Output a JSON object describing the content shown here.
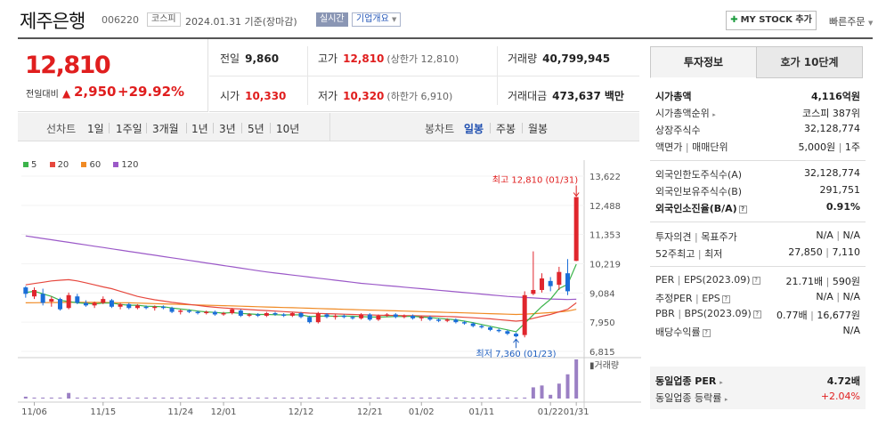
{
  "header": {
    "name": "제주은행",
    "code": "006220",
    "market": "코스피",
    "date": "2024.01.31 기준(장마감)",
    "realtime": "실시간",
    "overview": "기업개요",
    "mystock": "MY STOCK 추가",
    "quick_order": "빠른주문"
  },
  "price": {
    "current": "12,810",
    "prev_label": "전일대비",
    "change": "2,950",
    "change_pct": "+29.92%"
  },
  "quote": {
    "prev_close_label": "전일",
    "prev_close": "9,860",
    "high_label": "고가",
    "high": "12,810",
    "high_sub": "(상한가 12,810)",
    "volume_label": "거래량",
    "volume": "40,799,945",
    "open_label": "시가",
    "open": "10,330",
    "low_label": "저가",
    "low": "10,320",
    "low_sub": "(하한가 6,910)",
    "amount_label": "거래대금",
    "amount": "473,637",
    "amount_unit": "백만"
  },
  "tabs": {
    "line_label": "선차트",
    "line_periods": [
      "1일",
      "1주일",
      "3개월",
      "1년",
      "3년",
      "5년",
      "10년"
    ],
    "candle_label": "봉차트",
    "candle_periods": [
      "일봉",
      "주봉",
      "월봉"
    ],
    "active_candle": "일봉"
  },
  "legend": [
    {
      "label": "5",
      "color": "#3cb44b"
    },
    {
      "label": "20",
      "color": "#e6483e"
    },
    {
      "label": "60",
      "color": "#f08a24"
    },
    {
      "label": "120",
      "color": "#9b59c8"
    }
  ],
  "chart_data": {
    "type": "candlestick",
    "y_ticks": [
      "13,622",
      "12,488",
      "11,353",
      "10,219",
      "9,084",
      "7,950",
      "6,815"
    ],
    "ylim": [
      6815,
      13622
    ],
    "x_ticks": [
      "11/06",
      "11/15",
      "11/24",
      "12/01",
      "12/12",
      "12/21",
      "01/02",
      "01/11",
      "01/22",
      "01/31"
    ],
    "max_annotation": "최고 12,810 (01/31)",
    "min_annotation": "최저 7,360 (01/23)",
    "volume_label": "거래량",
    "candles": [
      [
        9300,
        9350,
        8900,
        9050
      ],
      [
        8950,
        9300,
        8850,
        9200
      ],
      [
        9050,
        9250,
        8600,
        8700
      ],
      [
        8750,
        8950,
        8550,
        8850
      ],
      [
        8850,
        8900,
        8400,
        8450
      ],
      [
        8500,
        9100,
        8450,
        9000
      ],
      [
        8950,
        9050,
        8650,
        8700
      ],
      [
        8700,
        8800,
        8550,
        8600
      ],
      [
        8600,
        8750,
        8500,
        8700
      ],
      [
        8700,
        8950,
        8650,
        8850
      ],
      [
        8800,
        8850,
        8500,
        8550
      ],
      [
        8550,
        8700,
        8450,
        8650
      ],
      [
        8650,
        8700,
        8450,
        8500
      ],
      [
        8500,
        8650,
        8450,
        8600
      ],
      [
        8550,
        8600,
        8450,
        8500
      ],
      [
        8500,
        8600,
        8400,
        8550
      ],
      [
        8550,
        8600,
        8450,
        8500
      ],
      [
        8500,
        8550,
        8300,
        8350
      ],
      [
        8350,
        8450,
        8250,
        8400
      ],
      [
        8400,
        8450,
        8300,
        8350
      ],
      [
        8350,
        8400,
        8250,
        8300
      ],
      [
        8300,
        8400,
        8250,
        8350
      ],
      [
        8350,
        8400,
        8200,
        8250
      ],
      [
        8250,
        8350,
        8200,
        8300
      ],
      [
        8300,
        8500,
        8250,
        8450
      ],
      [
        8400,
        8450,
        8150,
        8200
      ],
      [
        8200,
        8300,
        8150,
        8250
      ],
      [
        8250,
        8300,
        8150,
        8200
      ],
      [
        8200,
        8350,
        8150,
        8300
      ],
      [
        8300,
        8350,
        8200,
        8250
      ],
      [
        8250,
        8300,
        8150,
        8200
      ],
      [
        8200,
        8350,
        8150,
        8300
      ],
      [
        8300,
        8350,
        8100,
        8150
      ],
      [
        8150,
        8200,
        7900,
        7950
      ],
      [
        7950,
        8350,
        7900,
        8300
      ],
      [
        8250,
        8300,
        8100,
        8150
      ],
      [
        8150,
        8250,
        8050,
        8200
      ],
      [
        8200,
        8250,
        8100,
        8150
      ],
      [
        8150,
        8200,
        8050,
        8100
      ],
      [
        8100,
        8300,
        8050,
        8250
      ],
      [
        8250,
        8300,
        8000,
        8050
      ],
      [
        8050,
        8250,
        8000,
        8200
      ],
      [
        8200,
        8300,
        8150,
        8250
      ],
      [
        8250,
        8300,
        8100,
        8150
      ],
      [
        8150,
        8250,
        8100,
        8200
      ],
      [
        8200,
        8250,
        8050,
        8100
      ],
      [
        8100,
        8200,
        8000,
        8150
      ],
      [
        8150,
        8200,
        8000,
        8050
      ],
      [
        8050,
        8100,
        7950,
        8000
      ],
      [
        8000,
        8100,
        7950,
        8050
      ],
      [
        8050,
        8100,
        7900,
        7950
      ],
      [
        7950,
        8000,
        7850,
        7900
      ],
      [
        7900,
        7950,
        7750,
        7800
      ],
      [
        7800,
        7850,
        7700,
        7750
      ],
      [
        7750,
        7800,
        7600,
        7650
      ],
      [
        7650,
        7700,
        7550,
        7600
      ],
      [
        7600,
        7650,
        7450,
        7500
      ],
      [
        7500,
        7550,
        7360,
        7400
      ],
      [
        7450,
        9150,
        7360,
        9000
      ],
      [
        9050,
        10700,
        9000,
        9200
      ],
      [
        9200,
        9850,
        9100,
        9650
      ],
      [
        9550,
        9700,
        9150,
        9350
      ],
      [
        9400,
        10100,
        9200,
        9900
      ],
      [
        9850,
        10400,
        9000,
        9150
      ],
      [
        10330,
        12810,
        10320,
        12810
      ]
    ],
    "ma5": [
      9100,
      9150,
      9050,
      8950,
      8800,
      8750,
      8700,
      8680,
      8660,
      8690,
      8690,
      8640,
      8610,
      8610,
      8570,
      8560,
      8550,
      8500,
      8460,
      8430,
      8380,
      8350,
      8330,
      8300,
      8320,
      8290,
      8270,
      8250,
      8250,
      8240,
      8230,
      8240,
      8230,
      8170,
      8180,
      8190,
      8180,
      8190,
      8180,
      8170,
      8150,
      8150,
      8160,
      8170,
      8170,
      8180,
      8150,
      8130,
      8100,
      8070,
      8040,
      7990,
      7930,
      7860,
      7790,
      7720,
      7650,
      7580,
      7900,
      8240,
      8560,
      8840,
      9250,
      9420,
      10200
    ],
    "ma20": [
      9400,
      9450,
      9500,
      9550,
      9580,
      9600,
      9550,
      9480,
      9400,
      9320,
      9250,
      9150,
      9050,
      8950,
      8880,
      8820,
      8770,
      8720,
      8680,
      8640,
      8600,
      8560,
      8530,
      8500,
      8480,
      8460,
      8440,
      8420,
      8400,
      8380,
      8360,
      8340,
      8320,
      8300,
      8290,
      8280,
      8270,
      8260,
      8250,
      8240,
      8230,
      8220,
      8215,
      8210,
      8205,
      8200,
      8195,
      8190,
      8180,
      8170,
      8160,
      8140,
      8120,
      8100,
      8080,
      8050,
      8020,
      7990,
      8020,
      8100,
      8180,
      8250,
      8350,
      8450,
      8700
    ],
    "ma60": [
      8700,
      8705,
      8710,
      8712,
      8715,
      8718,
      8720,
      8720,
      8718,
      8715,
      8710,
      8705,
      8700,
      8690,
      8680,
      8670,
      8660,
      8650,
      8640,
      8630,
      8620,
      8610,
      8600,
      8590,
      8580,
      8570,
      8560,
      8550,
      8540,
      8530,
      8520,
      8510,
      8500,
      8490,
      8480,
      8470,
      8460,
      8450,
      8440,
      8430,
      8420,
      8410,
      8400,
      8390,
      8380,
      8370,
      8360,
      8350,
      8340,
      8330,
      8320,
      8310,
      8300,
      8290,
      8280,
      8270,
      8260,
      8250,
      8260,
      8280,
      8300,
      8320,
      8350,
      8380,
      8450
    ],
    "ma120": [
      11300,
      11250,
      11200,
      11150,
      11100,
      11050,
      11000,
      10950,
      10900,
      10850,
      10800,
      10750,
      10700,
      10650,
      10600,
      10550,
      10500,
      10450,
      10400,
      10350,
      10300,
      10250,
      10200,
      10150,
      10100,
      10050,
      10000,
      9950,
      9900,
      9860,
      9820,
      9780,
      9740,
      9700,
      9660,
      9620,
      9580,
      9540,
      9500,
      9460,
      9430,
      9400,
      9370,
      9340,
      9310,
      9280,
      9250,
      9220,
      9190,
      9160,
      9130,
      9100,
      9070,
      9040,
      9010,
      8980,
      8950,
      8930,
      8910,
      8890,
      8870,
      8850,
      8840,
      8830,
      8840
    ],
    "volumes": [
      2,
      1,
      1,
      1,
      1,
      6,
      1,
      1,
      1,
      1,
      1,
      1,
      1,
      1,
      1,
      1,
      1,
      1,
      1,
      1,
      1,
      1,
      1,
      1,
      1,
      1,
      1,
      1,
      1,
      1,
      1,
      1,
      1,
      1,
      1,
      1,
      1,
      1,
      1,
      1,
      1,
      1,
      1,
      1,
      1,
      1,
      1,
      1,
      1,
      1,
      1,
      1,
      1,
      1,
      1,
      1,
      1,
      1,
      1,
      12,
      14,
      4,
      16,
      26,
      42
    ]
  },
  "right_panel": {
    "tab_invest": "투자정보",
    "tab_orderbook": "호가 10단계",
    "rows": {
      "mcap_label": "시가총액",
      "mcap": "4,116억원",
      "mcap_rank_label": "시가총액순위",
      "mcap_rank": "코스피 387위",
      "shares_label": "상장주식수",
      "shares": "32,128,774",
      "par_label": "액면가",
      "par_sep": "|",
      "unit_label": "매매단위",
      "par": "5,000원",
      "unit": "1주",
      "foreign_limit_label": "외국인한도주식수(A)",
      "foreign_limit": "32,128,774",
      "foreign_hold_label": "외국인보유주식수(B)",
      "foreign_hold": "291,751",
      "foreign_ratio_label": "외국인소진율(B/A)",
      "foreign_ratio": "0.91%",
      "opinion_label": "투자의견",
      "target_label": "목표주가",
      "opinion": "N/A",
      "target": "N/A",
      "w52_label": "52주최고",
      "w52_low_label": "최저",
      "w52_high": "27,850",
      "w52_low": "7,110",
      "per_label": "PER",
      "eps_label": "EPS(2023.09)",
      "per": "21.71배",
      "eps": "590원",
      "eper_label": "추정PER",
      "eeps_label": "EPS",
      "eper": "N/A",
      "eeps": "N/A",
      "pbr_label": "PBR",
      "bps_label": "BPS(2023.09)",
      "pbr": "0.77배",
      "bps": "16,677원",
      "div_label": "배당수익률",
      "div": "N/A",
      "ind_per_label": "동일업종 PER",
      "ind_per": "4.72배",
      "ind_chg_label": "동일업종 등락률",
      "ind_chg": "+2.04%"
    }
  }
}
